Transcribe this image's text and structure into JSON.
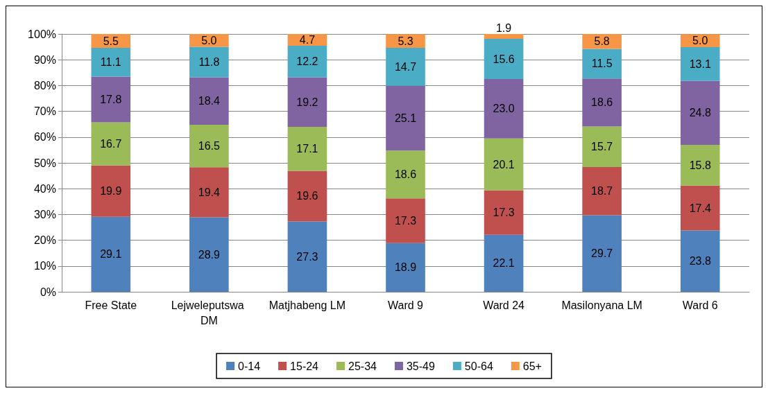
{
  "chart_data": {
    "type": "bar",
    "stacked": true,
    "categories": [
      "Free State",
      "Lejweleputswa DM",
      "Matjhabeng LM",
      "Ward 9",
      "Ward 24",
      "Masilonyana LM",
      "Ward 6"
    ],
    "series": [
      {
        "name": "0-14",
        "color": "#4f81bd",
        "values": [
          29.1,
          28.9,
          27.3,
          18.9,
          22.1,
          29.7,
          23.8
        ],
        "value_labels": [
          "29.1",
          "28.9",
          "27.3",
          "18.9",
          "22.1",
          "29.7",
          "23.8"
        ]
      },
      {
        "name": "15-24",
        "color": "#c0504d",
        "values": [
          19.9,
          19.4,
          19.6,
          17.3,
          17.3,
          18.7,
          17.4
        ],
        "value_labels": [
          "19.9",
          "19.4",
          "19.6",
          "17.3",
          "17.3",
          "18.7",
          "17.4"
        ]
      },
      {
        "name": "25-34",
        "color": "#9bbb59",
        "values": [
          16.7,
          16.5,
          17.1,
          18.6,
          20.1,
          15.7,
          15.8
        ],
        "value_labels": [
          "16.7",
          "16.5",
          "17.1",
          "18.6",
          "20.1",
          "15.7",
          "15.8"
        ]
      },
      {
        "name": "35-49",
        "color": "#8064a2",
        "values": [
          17.8,
          18.4,
          19.2,
          25.1,
          23.0,
          18.6,
          24.8
        ],
        "value_labels": [
          "17.8",
          "18.4",
          "19.2",
          "25.1",
          "23.0",
          "18.6",
          "24.8"
        ]
      },
      {
        "name": "50-64",
        "color": "#4bacc6",
        "values": [
          11.1,
          11.8,
          12.2,
          14.7,
          15.6,
          11.5,
          13.1
        ],
        "value_labels": [
          "11.1",
          "11.8",
          "12.2",
          "14.7",
          "15.6",
          "11.5",
          "13.1"
        ]
      },
      {
        "name": "65+",
        "color": "#f79646",
        "values": [
          5.5,
          5.0,
          4.7,
          5.3,
          1.9,
          5.8,
          5.0
        ],
        "value_labels": [
          "5.5",
          "5.0",
          "4.7",
          "5.3",
          "1.9",
          "5.8",
          "5.0"
        ]
      }
    ],
    "ylim": [
      0,
      100
    ],
    "yticks": [
      {
        "value": 0,
        "label": "0%"
      },
      {
        "value": 10,
        "label": "10%"
      },
      {
        "value": 20,
        "label": "20%"
      },
      {
        "value": 30,
        "label": "30%"
      },
      {
        "value": 40,
        "label": "40%"
      },
      {
        "value": 50,
        "label": "50%"
      },
      {
        "value": 60,
        "label": "60%"
      },
      {
        "value": 70,
        "label": "70%"
      },
      {
        "value": 80,
        "label": "80%"
      },
      {
        "value": 90,
        "label": "90%"
      },
      {
        "value": 100,
        "label": "100%"
      }
    ],
    "grid": "y",
    "legend": "bottom"
  }
}
